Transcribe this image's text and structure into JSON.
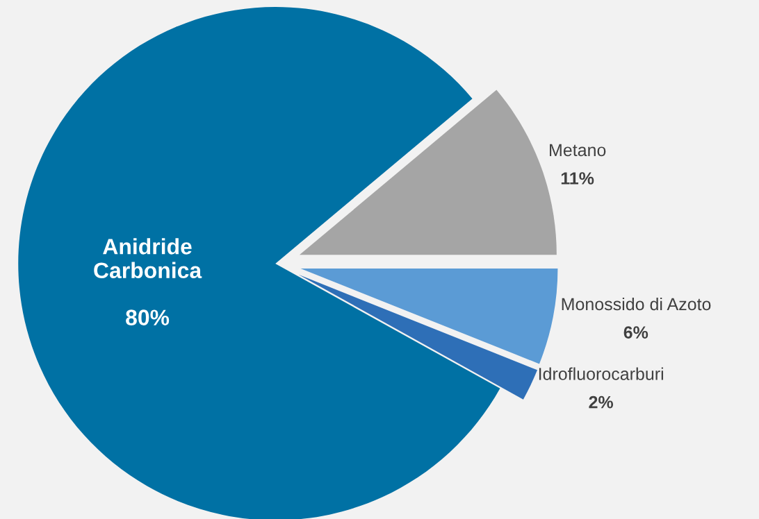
{
  "chart_data": {
    "type": "pie",
    "categories": [
      "Metano",
      "Monossido di Azoto",
      "Idrofluorocarburi",
      "Anidride Carbonica"
    ],
    "values": [
      11,
      6,
      2,
      80
    ],
    "value_labels": [
      "11%",
      "6%",
      "2%",
      "80%"
    ],
    "colors": [
      "#a5a5a5",
      "#5b9bd5",
      "#2e6fb7",
      "#0071a4"
    ],
    "legend": false
  }
}
